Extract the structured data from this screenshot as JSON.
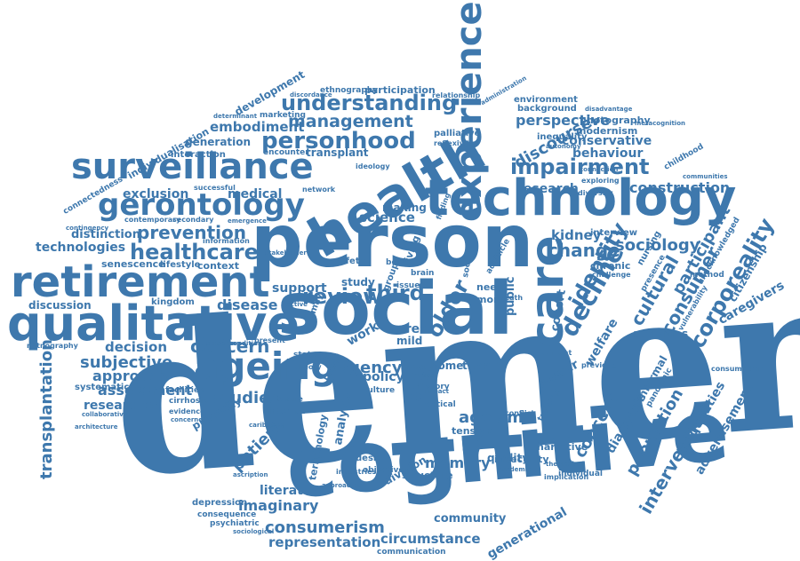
{
  "theme": {
    "word_color": "#3e78ad",
    "background": "#ffffff"
  },
  "words": {
    "dementia": "dementia",
    "cognitive": "cognitive",
    "social": "social",
    "person": "person",
    "technology": "technology",
    "health": "health",
    "qualitative": "qualitative",
    "retirement": "retirement",
    "surveillance": "surveillance",
    "gerontology": "gerontology",
    "ageing": "ageing",
    "experience": "experience",
    "care": "care",
    "personhood": "personhood",
    "understanding": "understanding",
    "management": "management",
    "impairment": "impairment",
    "healthcare": "healthcare",
    "prevention": "prevention",
    "concern": "concern",
    "review": "review",
    "third": "third",
    "older": "older",
    "decline": "decline",
    "identity": "identity",
    "cultural": "cultural",
    "consumer": "consumer",
    "corporeality": "corporeality",
    "participant": "participant",
    "sociology": "sociology",
    "change": "change",
    "kidney": "kidney",
    "discourse": "discourse",
    "perspective": "perspective",
    "conservative": "conservative",
    "behaviour": "behaviour",
    "construction": "construction",
    "research": "research",
    "embodiment": "embodiment",
    "generation": "generation",
    "exclusion": "exclusion",
    "medical": "medical",
    "technologies": "technologies",
    "distinction": "distinction",
    "senescence": "senescence",
    "lifestyle": "lifestyle",
    "context": "context",
    "discussion": "discussion",
    "kingdom": "kingdom",
    "disease": "disease",
    "decision": "decision",
    "subjective": "subjective",
    "approach": "approach",
    "assessment": "assessment",
    "researcher": "researcher",
    "studies": "studies",
    "patient": "patient",
    "precarity": "precarity",
    "transplantation": "transplantation",
    "systematic": "systematic",
    "agency": "agency",
    "policy": "policy",
    "life": "life",
    "home": "home",
    "theme": "theme",
    "ageism": "ageism",
    "tension": "tension",
    "memory": "memory",
    "quality": "quality",
    "insecurity": "insecurity",
    "narrative": "narrative",
    "concept": "concept",
    "diagnosis": "diagnosis",
    "population": "population",
    "intervention": "intervention",
    "inequalities": "inequalities",
    "advertisement": "advertisement",
    "activities": "activities",
    "welfare": "welfare",
    "informal": "informal",
    "pandemic": "pandemic",
    "caregivers": "caregivers",
    "citizenship": "citizenship",
    "consumerism": "consumerism",
    "imaginary": "imaginary",
    "literature": "literature",
    "representation": "representation",
    "circumstance": "circumstance",
    "community": "community",
    "generational": "generational",
    "communication": "communication",
    "depression": "depression",
    "consequence": "consequence",
    "psychiatric": "psychiatric",
    "structure": "structure",
    "division": "division",
    "analysis": "analysis",
    "terminology": "terminology",
    "design": "design",
    "objective": "objective",
    "industries": "industries",
    "support": "support",
    "study": "study",
    "work": "work",
    "carer": "carer",
    "mild": "mild",
    "need": "need",
    "moral": "moral",
    "public": "public",
    "cohort": "cohort",
    "science": "science",
    "making": "making",
    "living": "living",
    "safety": "safety",
    "interview": "interview",
    "chronic": "chronic",
    "challenge": "challenge",
    "nursing": "nursing",
    "presence": "presence",
    "method": "method",
    "environment": "environment",
    "background": "background",
    "modernism": "modernism",
    "photography": "photography",
    "inequality": "inequality",
    "childhood": "childhood",
    "communities": "communities",
    "diversity": "diversity",
    "exploring": "exploring",
    "participation": "participation",
    "ethnography": "ethnography",
    "development": "development",
    "marketing": "marketing",
    "individualisation": "individualisation",
    "interaction": "interaction",
    "encounter": "encounter",
    "transplant": "transplant",
    "palliative": "palliative",
    "connectedness": "connectedness",
    "successful": "successful",
    "network": "network",
    "contemporary": "contemporary",
    "secondary": "secondary",
    "information": "information",
    "netnography": "netnography",
    "facilities": "facilities",
    "cirrhosis": "cirrhosis",
    "evidence": "evidence",
    "collaborative": "collaborative",
    "power": "power",
    "training": "training",
    "individual": "individual",
    "implication": "implication",
    "theoretical": "theoretical",
    "academic": "academic",
    "current": "current",
    "previous": "previous",
    "consumption": "consumption",
    "unacknowledged": "unacknowledged",
    "vulnerability": "vulnerability",
    "ideology": "ideology",
    "relationship": "relationship",
    "reflexivity": "reflexivity",
    "discordance": "discordance",
    "administration": "administration",
    "disadvantage": "disadvantage",
    "metacognition": "metacognition",
    "autonomy": "autonomy",
    "connection": "connection",
    "stakeholder": "stakeholder",
    "issue": "issue",
    "body": "body",
    "brain": "brain",
    "state": "state",
    "organ": "organ",
    "culture": "culture",
    "present": "present",
    "leisure": "leisure",
    "internet": "internet",
    "history": "history",
    "critical": "critical",
    "impact": "impact",
    "conflict": "conflict",
    "finding": "finding",
    "framing": "framing",
    "theory": "theory",
    "group": "group",
    "active": "active",
    "family": "family",
    "adult": "adult",
    "death": "death",
    "article": "article",
    "society": "society",
    "paper": "paper",
    "elderly": "elderly",
    "adapting": "adapting",
    "pathway": "pathway",
    "product": "product",
    "approaches": "approaches",
    "sociological": "sociological",
    "caribbean": "caribbean",
    "ascription": "ascription",
    "architecture": "architecture",
    "concerned": "concerned",
    "contingency": "contingency",
    "screening": "screening",
    "condition": "condition",
    "emergence": "emergence",
    "potential": "potential",
    "future": "future",
    "determinant": "determinant"
  }
}
